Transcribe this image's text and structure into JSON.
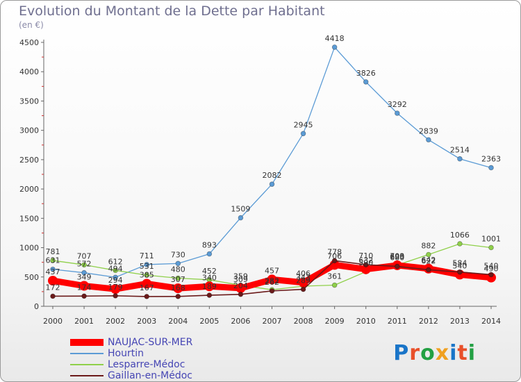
{
  "title": "Evolution du Montant de la Dette par Habitant",
  "unit_label": "(en €)",
  "brand": {
    "text": "Proxiti",
    "colors": [
      "#1a75c8",
      "#e8502a",
      "#23a043",
      "#f0a020",
      "#1a75c8",
      "#e8502a",
      "#23a043"
    ]
  },
  "chart_data": {
    "type": "line",
    "title": "Evolution du Montant de la Dette par Habitant",
    "ylabel": "(en €)",
    "xlabel": "",
    "ylim": [
      0,
      4500
    ],
    "y_ticks": [
      0,
      500,
      1000,
      1500,
      2000,
      2500,
      3000,
      3500,
      4000,
      4500
    ],
    "x": [
      "2000",
      "2001",
      "2002",
      "2003",
      "2004",
      "2005",
      "2006",
      "2007",
      "2008",
      "2009",
      "2010",
      "2011",
      "2012",
      "2013",
      "2014"
    ],
    "grid": false,
    "legend_position": "bottom-left",
    "series": [
      {
        "name": "NAUJAC-SUR-MER",
        "color": "#ff0000",
        "values": [
          437,
          349,
          294,
          385,
          307,
          340,
          309,
          457,
          406,
          706,
          632,
          699,
          642,
          540,
          490
        ],
        "labels": [
          "437",
          "349",
          "294",
          "385",
          "307",
          "340",
          "309",
          "457",
          "406",
          "706",
          "632",
          "699",
          "642",
          "540",
          "490"
        ]
      },
      {
        "name": "Hourtin",
        "color": "#5b9bd5",
        "values": [
          631,
          572,
          494,
          711,
          730,
          893,
          1509,
          2082,
          2945,
          4418,
          3826,
          3292,
          2839,
          2514,
          2363
        ],
        "labels": [
          "631",
          "572",
          "494",
          "711",
          "730",
          "893",
          "1509",
          "2082",
          "2945",
          "4418",
          "3826",
          "3292",
          "2839",
          "2514",
          "2363"
        ]
      },
      {
        "name": "Lesparre-Médoc",
        "color": "#8fd04a",
        "values": [
          781,
          707,
          612,
          531,
          480,
          452,
          359,
          282,
          343,
          361,
          590,
          703,
          882,
          1066,
          1001
        ],
        "labels": [
          "781",
          "707",
          "612",
          "531",
          "480",
          "452",
          "359",
          "282",
          "343",
          "361",
          "590",
          "703",
          "882",
          "1066",
          "1001"
        ]
      },
      {
        "name": "Gaillan-en-Médoc",
        "color": "#6b1a1a",
        "values": [
          172,
          174,
          179,
          167,
          168,
          189,
          204,
          262,
          289,
          778,
          710,
          680,
          622,
          584,
          540
        ],
        "labels": [
          "172",
          "174",
          "179",
          "167",
          "168",
          "189",
          "204",
          "262",
          "289",
          "778",
          "710",
          "680",
          "622",
          "584",
          "540"
        ]
      }
    ]
  }
}
